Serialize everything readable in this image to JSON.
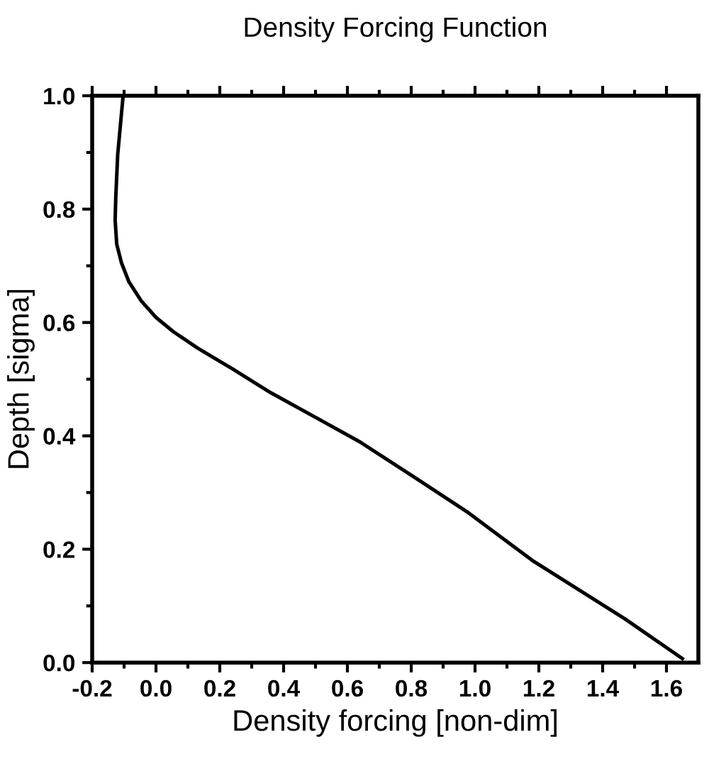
{
  "chart_data": {
    "type": "line",
    "title": "Density Forcing Function",
    "xlabel": "Density forcing [non-dim]",
    "ylabel": "Depth [sigma]",
    "x": [
      -0.103,
      -0.12,
      -0.126,
      -0.128,
      -0.123,
      -0.108,
      -0.085,
      -0.046,
      0.0,
      0.054,
      0.13,
      0.24,
      0.36,
      0.515,
      0.64,
      0.81,
      0.98,
      1.18,
      1.47,
      1.65
    ],
    "series": [
      {
        "color": "#000000",
        "values": [
          1.0,
          0.896,
          0.821,
          0.78,
          0.738,
          0.705,
          0.672,
          0.638,
          0.609,
          0.584,
          0.555,
          0.518,
          0.476,
          0.428,
          0.389,
          0.327,
          0.264,
          0.18,
          0.077,
          0.007
        ]
      }
    ],
    "xlim": [
      -0.2,
      1.7
    ],
    "ylim": [
      0.0,
      1.0
    ],
    "xticks": [
      {
        "value": -0.2,
        "label": "-0.2"
      },
      {
        "value": 0.0,
        "label": "0.0"
      },
      {
        "value": 0.2,
        "label": "0.2"
      },
      {
        "value": 0.4,
        "label": "0.4"
      },
      {
        "value": 0.6,
        "label": "0.6"
      },
      {
        "value": 0.8,
        "label": "0.8"
      },
      {
        "value": 1.0,
        "label": "1.0"
      },
      {
        "value": 1.2,
        "label": "1.2"
      },
      {
        "value": 1.4,
        "label": "1.4"
      },
      {
        "value": 1.6,
        "label": "1.6"
      }
    ],
    "yticks": [
      {
        "value": 0.0,
        "label": "0.0"
      },
      {
        "value": 0.2,
        "label": "0.2"
      },
      {
        "value": 0.4,
        "label": "0.4"
      },
      {
        "value": 0.6,
        "label": "0.6"
      },
      {
        "value": 0.8,
        "label": "0.8"
      },
      {
        "value": 1.0,
        "label": "1.0"
      }
    ],
    "grid": false,
    "line_style": "solid",
    "marker": "none"
  }
}
